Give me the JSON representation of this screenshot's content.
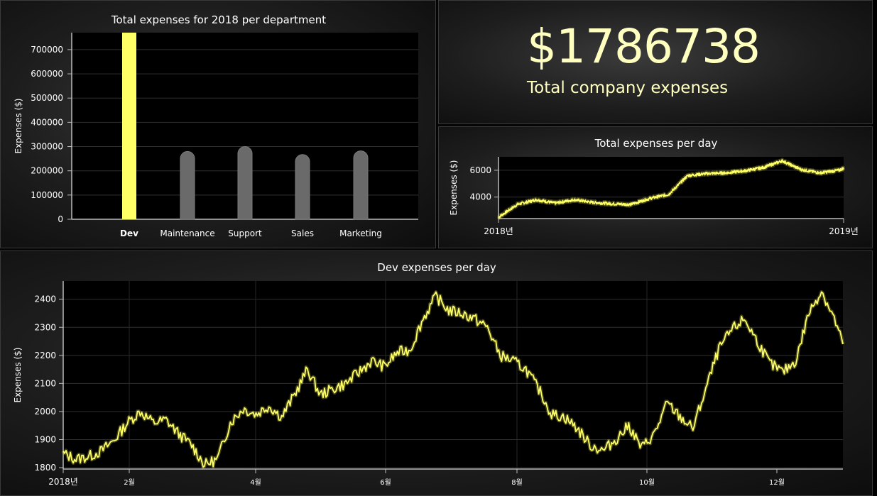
{
  "summary": {
    "total_value": "$1786738",
    "total_label": "Total company expenses"
  },
  "chart_data": [
    {
      "type": "bar",
      "title": "Total expenses for 2018 per department",
      "ylabel": "Expenses ($)",
      "categories": [
        "Dev",
        "Maintenance",
        "Support",
        "Sales",
        "Marketing"
      ],
      "values": [
        770000,
        280000,
        300000,
        267000,
        282000
      ],
      "highlighted": "Dev",
      "ylim": [
        0,
        770000
      ],
      "yticks": [
        0,
        100000,
        200000,
        300000,
        400000,
        500000,
        600000,
        700000
      ],
      "colors": {
        "highlight": "#ffff66",
        "bar": "#6a6a6a"
      },
      "grid": true
    },
    {
      "type": "line",
      "title": "Total expenses per day",
      "ylabel": "Expenses ($)",
      "xticks": [
        "2018년",
        "2019년"
      ],
      "ylim": [
        2400,
        7000
      ],
      "yticks": [
        4000,
        6000
      ],
      "x": [
        0,
        20,
        40,
        60,
        80,
        100,
        120,
        140,
        160,
        180,
        200,
        220,
        240,
        260,
        280,
        300,
        320,
        340,
        360,
        365
      ],
      "values": [
        2500,
        3450,
        3800,
        3550,
        3800,
        3600,
        3500,
        3450,
        3900,
        4200,
        5600,
        5750,
        5800,
        5950,
        6200,
        6700,
        6050,
        5800,
        6000,
        6150
      ],
      "colors": {
        "line": "#ffff66"
      },
      "grid": true
    },
    {
      "type": "line",
      "title": "Dev expenses per day",
      "ylabel": "Expenses ($)",
      "xticks": [
        "2018년",
        "2월",
        "4월",
        "6월",
        "8월",
        "10월",
        "12월"
      ],
      "ylim": [
        1795,
        2465
      ],
      "yticks": [
        1800,
        1900,
        2000,
        2100,
        2200,
        2300,
        2400
      ],
      "x": [
        0,
        6,
        12,
        18,
        24,
        30,
        36,
        42,
        48,
        54,
        60,
        66,
        72,
        78,
        84,
        90,
        96,
        102,
        108,
        114,
        120,
        126,
        132,
        138,
        144,
        150,
        156,
        162,
        168,
        174,
        180,
        186,
        192,
        198,
        204,
        210,
        216,
        222,
        228,
        234,
        240,
        246,
        252,
        258,
        264,
        270,
        276,
        282,
        288,
        294,
        300,
        306,
        312,
        318,
        324,
        330,
        336,
        342,
        348,
        354,
        360,
        364
      ],
      "values": [
        1850,
        1830,
        1840,
        1860,
        1900,
        1960,
        2000,
        1960,
        1970,
        1920,
        1880,
        1810,
        1830,
        1960,
        2010,
        1990,
        2020,
        1980,
        2060,
        2150,
        2060,
        2080,
        2100,
        2140,
        2180,
        2160,
        2210,
        2220,
        2330,
        2410,
        2360,
        2350,
        2330,
        2300,
        2200,
        2180,
        2150,
        2080,
        1990,
        1980,
        1940,
        1880,
        1860,
        1900,
        1950,
        1870,
        1920,
        2030,
        1980,
        1940,
        2080,
        2220,
        2290,
        2330,
        2250,
        2170,
        2140,
        2180,
        2350,
        2430,
        2330,
        2240
      ],
      "colors": {
        "line": "#ffff66"
      },
      "grid": true
    }
  ]
}
